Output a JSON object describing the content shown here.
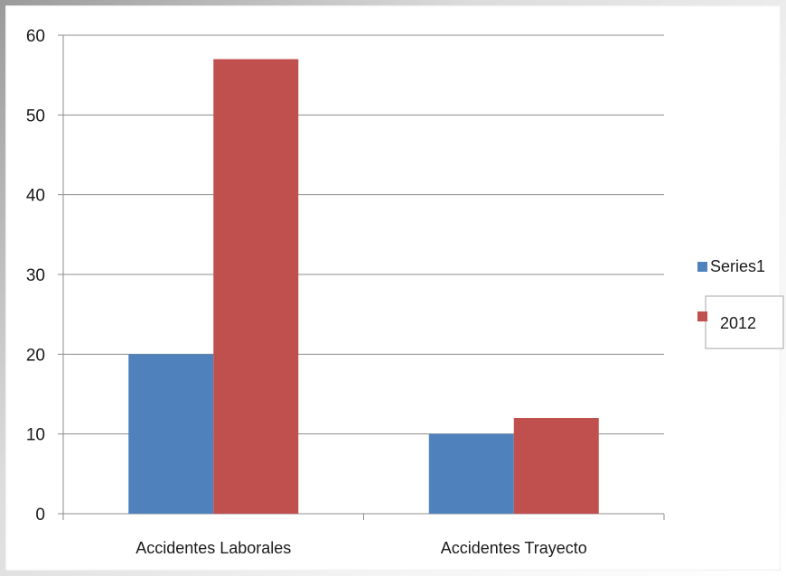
{
  "chart_data": {
    "type": "bar",
    "categories": [
      "Accidentes Laborales",
      "Accidentes Trayecto"
    ],
    "series": [
      {
        "name": "Series1",
        "values": [
          20,
          10
        ],
        "color": "#4f81bd"
      },
      {
        "name": "2012",
        "values": [
          57,
          12
        ],
        "color": "#c0504d"
      }
    ],
    "title": "",
    "xlabel": "",
    "ylabel": "",
    "ylim": [
      0,
      60
    ],
    "yticks": [
      0,
      10,
      20,
      30,
      40,
      50,
      60
    ],
    "grid": true,
    "legend_position": "right"
  }
}
